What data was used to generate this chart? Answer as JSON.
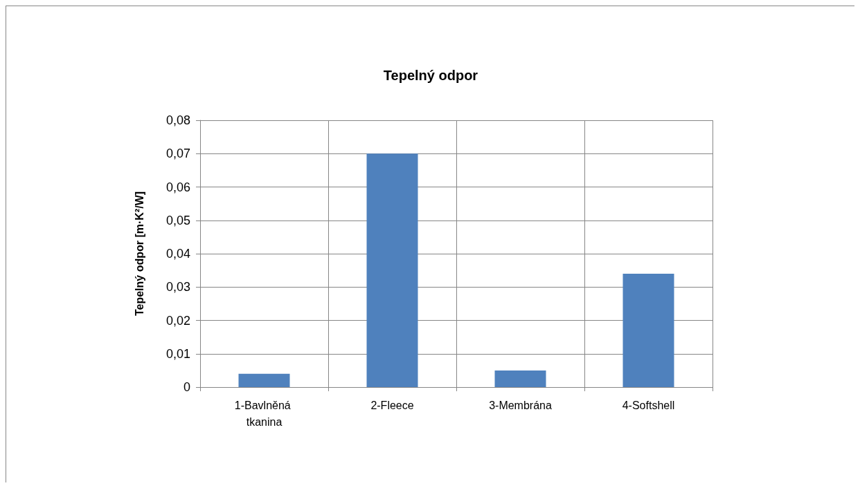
{
  "chart_data": {
    "type": "bar",
    "title": "Tepelný odpor",
    "ylabel": "Tepelný odpor [m·K²/W]",
    "categories": [
      "1-Bavlněná tkanina",
      "2-Fleece",
      "3-Membrána",
      "4-Softshell"
    ],
    "values": [
      0.004,
      0.07,
      0.005,
      0.034
    ],
    "color": "#4f81bd",
    "ylim": [
      0,
      0.08
    ],
    "yticks": [
      0,
      {
        "value": 0.01,
        "label": "0,01"
      },
      {
        "value": 0.02,
        "label": "0,02"
      },
      {
        "value": 0.03,
        "label": "0,03"
      },
      {
        "value": 0.04,
        "label": "0,04"
      },
      {
        "value": 0.05,
        "label": "0,05"
      },
      {
        "value": 0.06,
        "label": "0,06"
      },
      {
        "value": 0.07,
        "label": "0,07"
      },
      {
        "value": 0.08,
        "label": "0,08"
      }
    ],
    "grid": true
  }
}
